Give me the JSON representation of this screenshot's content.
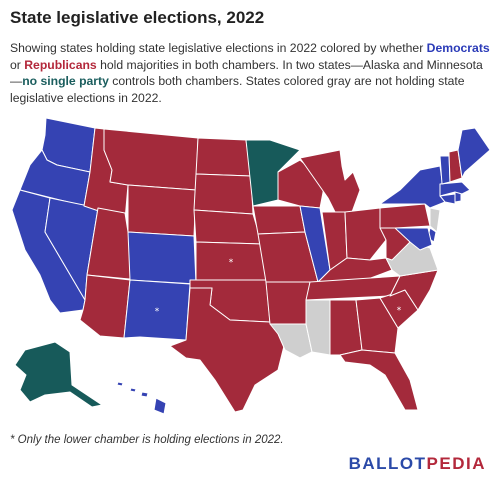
{
  "title": "State legislative elections, 2022",
  "description": {
    "p1": "Showing states holding state legislative elections in 2022 colored by whether ",
    "democrats": "Democrats",
    "p2": " or ",
    "republicans": "Republicans",
    "p3": " hold majorities in both chambers. In two states—Alaska and Minnesota—",
    "no_single_party": "no single party",
    "p4": " controls both chambers. States colored gray are not holding state legislative elections in 2022."
  },
  "colors": {
    "democratic": "#3543b3",
    "republican": "#a32a3b",
    "split": "#175a5a",
    "no_election": "#cfcfcf"
  },
  "map_data": {
    "type": "choropleth",
    "democratic": [
      "WA",
      "OR",
      "CA",
      "NV",
      "CO",
      "NM",
      "IL",
      "NY",
      "VT",
      "ME",
      "MA",
      "RI",
      "CT",
      "DE",
      "MD",
      "HI"
    ],
    "republican": [
      "ID",
      "MT",
      "WY",
      "UT",
      "AZ",
      "ND",
      "SD",
      "NE",
      "KS",
      "OK",
      "TX",
      "IA",
      "MO",
      "AR",
      "WI",
      "MI",
      "IN",
      "OH",
      "KY",
      "TN",
      "WV",
      "PA",
      "NH",
      "AL",
      "GA",
      "FL",
      "SC",
      "NC"
    ],
    "split": [
      "MN",
      "AK"
    ],
    "no_election": [
      "MS",
      "LA",
      "VA",
      "NJ"
    ],
    "lower_chamber_only": [
      "NM",
      "KS",
      "SC"
    ]
  },
  "star_symbol": "*",
  "footnote": "* Only the lower chamber is holding elections in 2022.",
  "logo": {
    "part1": "BALLOT",
    "part2": "PEDIA"
  }
}
